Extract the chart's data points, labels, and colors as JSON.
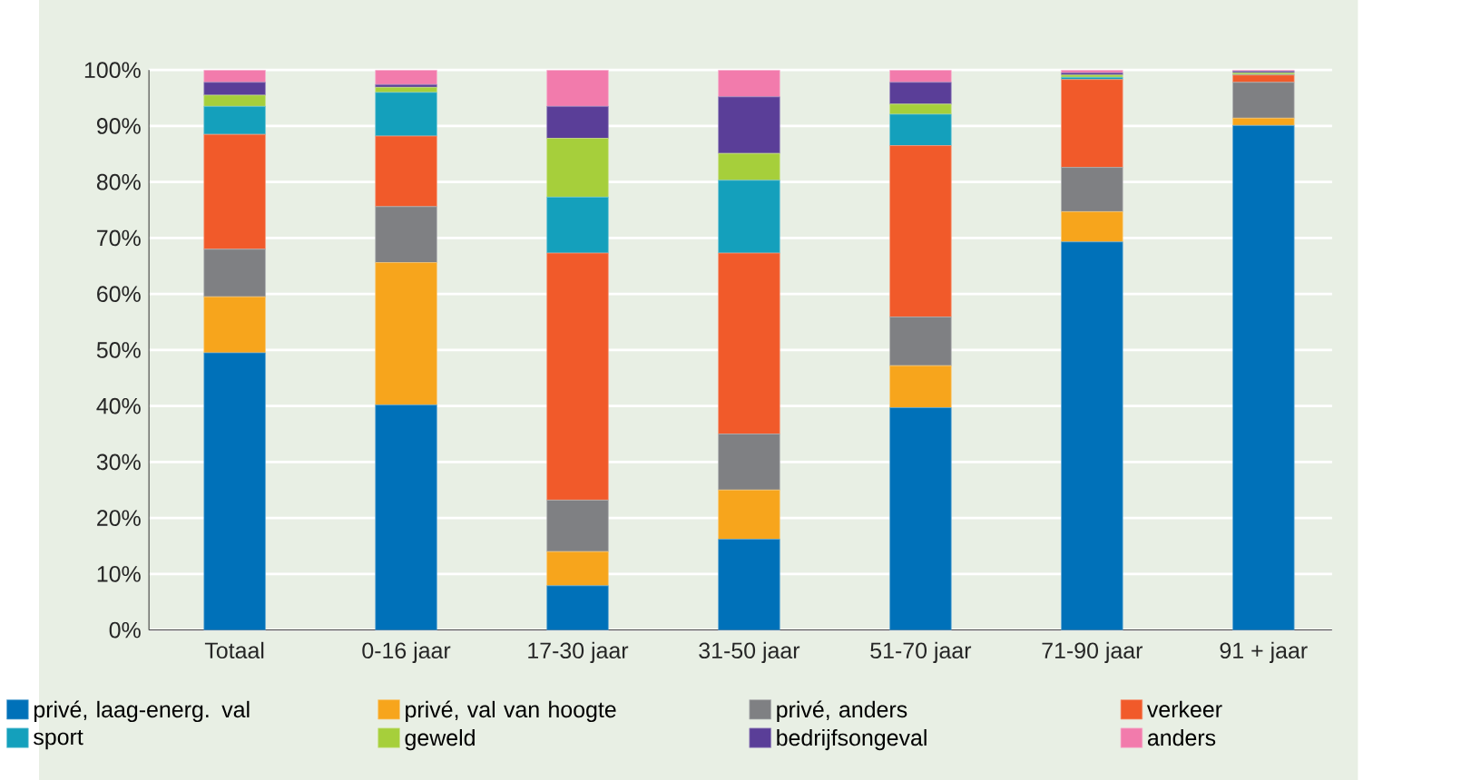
{
  "chart_data": {
    "type": "bar",
    "stacked": true,
    "categories": [
      "Totaal",
      "0-16 jaar",
      "17-30 jaar",
      "31-50 jaar",
      "51-70 jaar",
      "71-90 jaar",
      "91 + jaar"
    ],
    "series": [
      {
        "name": "privé, laag-energ. val",
        "color": "#0071b9",
        "values": [
          49.5,
          40.2,
          7.9,
          16.2,
          39.7,
          69.3,
          90.1
        ]
      },
      {
        "name": "privé, val van hoogte",
        "color": "#f7a51c",
        "values": [
          10,
          25.4,
          6.1,
          8.8,
          7.5,
          5.4,
          1.3
        ]
      },
      {
        "name": "privé, anders",
        "color": "#7f8083",
        "values": [
          8.5,
          10,
          9.2,
          10,
          8.7,
          7.9,
          6.4
        ]
      },
      {
        "name": "verkeer",
        "color": "#f15a2a",
        "values": [
          20.5,
          12.6,
          44.1,
          32.3,
          30.6,
          15.7,
          1.3
        ]
      },
      {
        "name": "sport",
        "color": "#14a0bc",
        "values": [
          5,
          7.8,
          10,
          13,
          5.6,
          0.4,
          0.1
        ]
      },
      {
        "name": "geweld",
        "color": "#a6cf3b",
        "values": [
          2,
          0.9,
          10.5,
          4.8,
          1.8,
          0.4,
          0.3
        ]
      },
      {
        "name": "bedrijfsongeval",
        "color": "#5a3e98",
        "values": [
          2.3,
          0.5,
          5.7,
          10.1,
          3.9,
          0.4,
          0.3
        ]
      },
      {
        "name": "anders",
        "color": "#f27bac",
        "values": [
          2.2,
          2.6,
          6.5,
          4.8,
          2.2,
          0.5,
          0.2
        ]
      }
    ],
    "ylim": [
      0,
      100
    ],
    "yticks": [
      {
        "value": 0,
        "label": "0%"
      },
      {
        "value": 10,
        "label": "10%"
      },
      {
        "value": 20,
        "label": "20%"
      },
      {
        "value": 30,
        "label": "30%"
      },
      {
        "value": 40,
        "label": "40%"
      },
      {
        "value": 50,
        "label": "50%"
      },
      {
        "value": 60,
        "label": "60%"
      },
      {
        "value": 70,
        "label": "70%"
      },
      {
        "value": 80,
        "label": "80%"
      },
      {
        "value": 90,
        "label": "90%"
      },
      {
        "value": 100,
        "label": "100%"
      }
    ],
    "grid": "y",
    "legend": "bottom"
  }
}
